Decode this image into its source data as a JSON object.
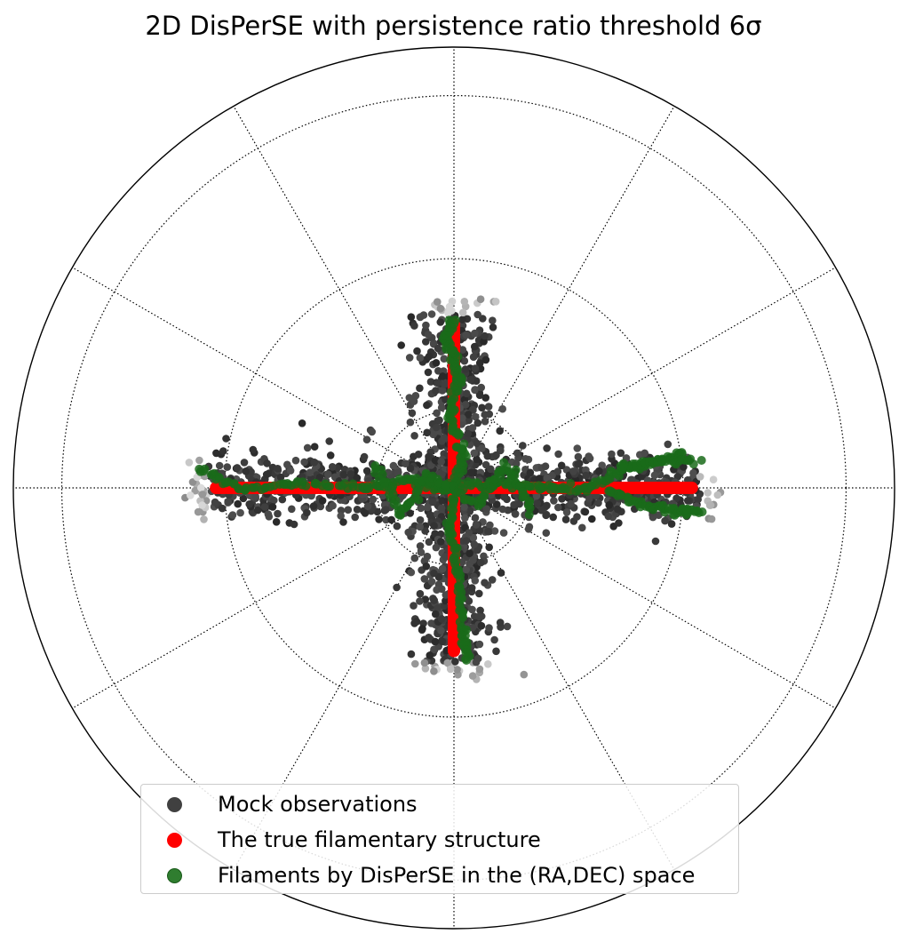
{
  "chart_data": {
    "type": "scatter",
    "projection": "polar",
    "title": "2D DisPerSE with persistence ratio threshold 6σ",
    "grid": true,
    "grid_style": "dotted",
    "radial_rings": 4,
    "meridians_deg": [
      0,
      30,
      60,
      90,
      120,
      150,
      180,
      210,
      240,
      270,
      300,
      330
    ],
    "legend_position": "lower-center",
    "series": [
      {
        "name": "Mock observations",
        "color": "#404040",
        "description_shape": "cross",
        "arms": {
          "horizontal_half_length": 0.62,
          "horizontal_half_width": 0.07,
          "vertical_half_length": 0.44,
          "vertical_half_width": 0.07
        }
      },
      {
        "name": "The true filamentary structure",
        "color": "#ff0000",
        "segments": [
          {
            "x": [
              -0.54,
              0.54
            ],
            "y": [
              0.0,
              0.0
            ]
          },
          {
            "x": [
              0.0,
              0.0
            ],
            "y": [
              -0.37,
              0.37
            ]
          }
        ]
      },
      {
        "name": "Filaments by DisPerSE in the (RA,DEC) space",
        "color": "#1a6b1a",
        "paths": [
          {
            "x": [
              -0.58,
              -0.48,
              -0.35,
              -0.2,
              -0.1,
              -0.02,
              0.0
            ],
            "y": [
              0.04,
              -0.005,
              0.01,
              0.0,
              0.02,
              0.0,
              0.0
            ]
          },
          {
            "x": [
              0.0,
              0.1,
              0.2,
              0.3,
              0.38,
              0.45,
              0.52
            ],
            "y": [
              0.0,
              0.01,
              0.0,
              -0.005,
              0.04,
              0.055,
              0.08
            ]
          },
          {
            "x": [
              0.35,
              0.42,
              0.5,
              0.56
            ],
            "y": [
              -0.005,
              -0.035,
              -0.055,
              -0.05
            ]
          },
          {
            "x": [
              0.38,
              0.47,
              0.55
            ],
            "y": [
              0.05,
              0.065,
              0.06
            ]
          },
          {
            "x": [
              0.0,
              0.02,
              -0.01,
              0.01,
              0.0,
              -0.02,
              0.0
            ],
            "y": [
              0.0,
              0.08,
              0.16,
              0.24,
              0.3,
              0.34,
              0.38
            ]
          },
          {
            "x": [
              0.0,
              -0.01,
              0.01,
              0.02,
              0.03
            ],
            "y": [
              0.0,
              -0.1,
              -0.2,
              -0.32,
              -0.39
            ]
          },
          {
            "x": [
              -0.18,
              -0.12,
              -0.06,
              0.05,
              0.12,
              0.18
            ],
            "y": [
              0.05,
              -0.06,
              0.03,
              -0.04,
              0.05,
              -0.05
            ]
          }
        ]
      }
    ]
  },
  "legend": {
    "items": [
      {
        "label": "Mock observations",
        "color": "#404040"
      },
      {
        "label": "The true filamentary structure",
        "color": "#ff0000"
      },
      {
        "label": "Filaments by DisPerSE in the (RA,DEC) space",
        "color": "#2f7d2f"
      }
    ]
  }
}
